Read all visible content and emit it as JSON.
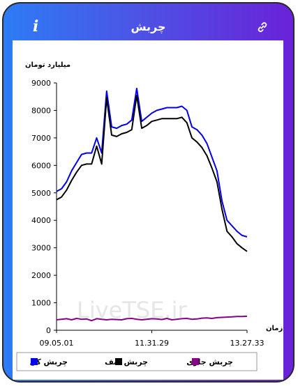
{
  "header": {
    "title": "چربش",
    "info_icon": "info-icon",
    "link_icon": "link-icon"
  },
  "chart_data": {
    "type": "line",
    "ylabel": "میلیارد تومان",
    "xlabel": "زمان",
    "ylim": [
      0,
      9000
    ],
    "yticks": [
      "0",
      "1000",
      "2000",
      "3000",
      "4000",
      "5000",
      "6000",
      "7000",
      "8000",
      "9000"
    ],
    "xticks": [
      "09.05.01",
      "11.31.29",
      "13.27.33"
    ],
    "watermark": "LiveTSE.ir",
    "grid": false,
    "legend_position": "bottom",
    "series": [
      {
        "name": "چربش کل",
        "color": "#0000ee",
        "values": [
          5050,
          5150,
          5400,
          5800,
          6100,
          6400,
          6450,
          6450,
          7000,
          6450,
          8700,
          7400,
          7350,
          7450,
          7500,
          7650,
          8800,
          7600,
          7750,
          7900,
          8000,
          8050,
          8100,
          8100,
          8100,
          8150,
          8000,
          7400,
          7300,
          7100,
          6800,
          6300,
          5800,
          4700,
          4000,
          3800,
          3600,
          3450,
          3400
        ]
      },
      {
        "name": "چربش صف",
        "color": "#000000",
        "values": [
          4750,
          4850,
          5100,
          5450,
          5750,
          6000,
          6050,
          6050,
          6700,
          6050,
          8450,
          7100,
          7050,
          7150,
          7200,
          7300,
          8550,
          7350,
          7450,
          7600,
          7650,
          7700,
          7700,
          7700,
          7700,
          7750,
          7550,
          7000,
          6850,
          6650,
          6350,
          5900,
          5400,
          4400,
          3600,
          3400,
          3150,
          3000,
          2870
        ]
      },
      {
        "name": "چربش جاری",
        "color": "#880088",
        "values": [
          380,
          400,
          420,
          380,
          430,
          400,
          410,
          350,
          420,
          400,
          380,
          400,
          390,
          380,
          420,
          430,
          400,
          380,
          400,
          420,
          410,
          390,
          430,
          380,
          400,
          420,
          430,
          400,
          410,
          440,
          450,
          430,
          460,
          470,
          480,
          490,
          500,
          500,
          510
        ]
      }
    ]
  }
}
